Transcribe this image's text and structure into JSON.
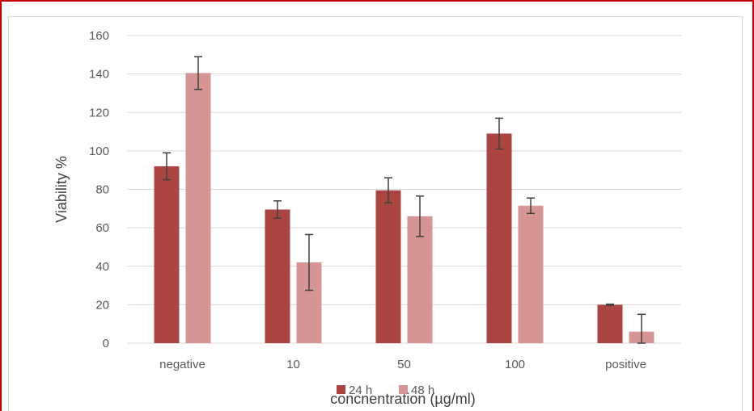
{
  "chart_data": {
    "type": "bar",
    "title": "",
    "xlabel": "concnentration (µg/ml)",
    "ylabel": "Viability %",
    "ylim": [
      0,
      160
    ],
    "yticks": [
      0,
      20,
      40,
      60,
      80,
      100,
      120,
      140,
      160
    ],
    "categories": [
      "negative",
      "10",
      "50",
      "100",
      "positive"
    ],
    "series": [
      {
        "name": "24 h",
        "color": "#ab4542",
        "values": [
          92,
          69.5,
          79.5,
          109,
          20
        ],
        "errors": [
          7,
          4.5,
          6.5,
          8,
          0.3
        ]
      },
      {
        "name": "48 h",
        "color": "#d59595",
        "values": [
          140.5,
          42,
          66,
          71.5,
          6
        ],
        "errors": [
          8.5,
          14.5,
          10.5,
          4,
          9
        ]
      }
    ],
    "grid": true,
    "legend_position": "bottom"
  }
}
